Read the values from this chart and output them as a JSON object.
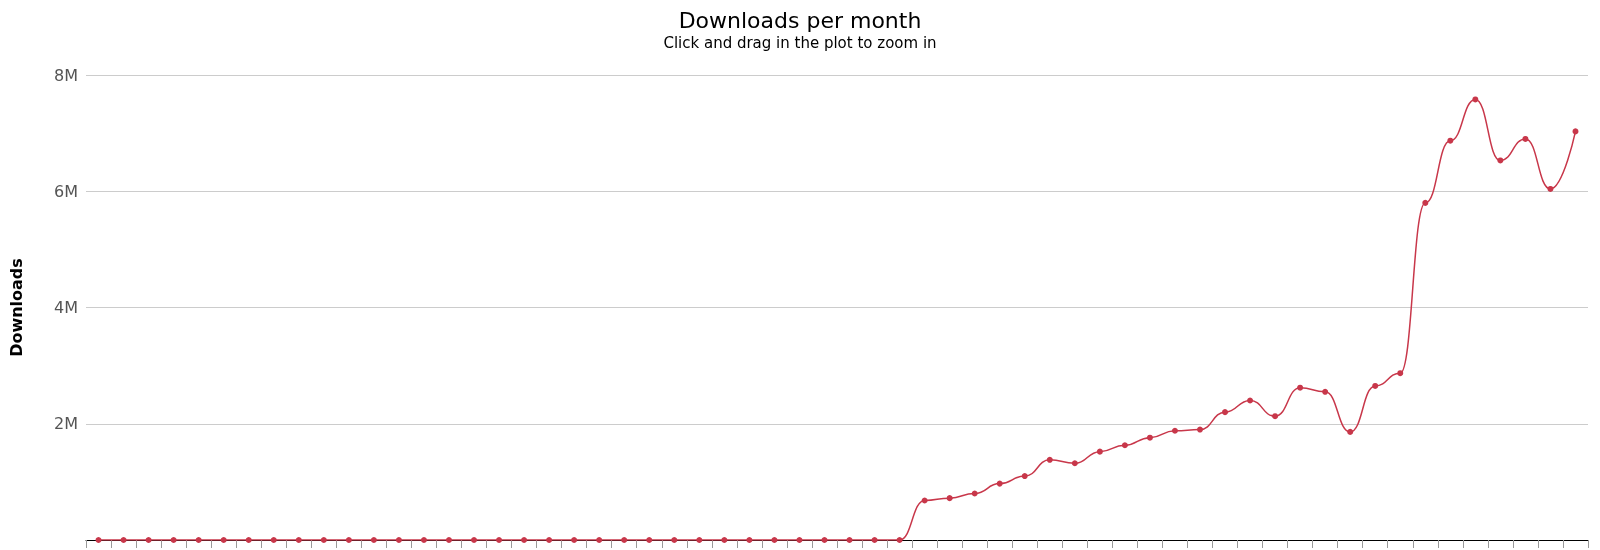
{
  "chart_data": {
    "type": "line",
    "title": "Downloads per month",
    "subtitle": "Click and drag in the plot to zoom in",
    "ylabel": "Downloads",
    "categories": [
      null,
      null,
      null,
      null,
      null,
      null,
      null,
      null,
      null,
      null,
      null,
      null,
      null,
      null,
      null,
      null,
      null,
      null,
      null,
      null,
      null,
      null,
      null,
      null,
      null,
      null,
      null,
      null,
      null,
      null,
      null,
      null,
      null,
      null,
      null,
      null,
      null,
      null,
      null,
      null,
      null,
      null,
      null,
      null,
      null,
      null,
      null,
      null,
      null,
      null,
      null,
      null,
      null,
      null,
      null,
      null,
      null,
      null,
      null,
      null
    ],
    "series": [
      {
        "color": "#c8374a",
        "values": [
          0,
          0,
          0,
          0,
          0,
          0,
          0,
          0,
          0,
          0,
          0,
          0,
          0,
          0,
          0,
          0,
          0,
          0,
          0,
          0,
          0,
          0,
          0,
          0,
          0,
          0,
          0,
          0,
          0,
          0,
          0,
          0,
          0,
          680000,
          720000,
          800000,
          970000,
          1100000,
          1380000,
          1320000,
          1520000,
          1630000,
          1760000,
          1880000,
          1900000,
          2200000,
          2400000,
          2130000,
          2620000,
          2550000,
          1860000,
          2650000,
          2870000,
          5800000,
          6870000,
          7580000,
          6530000,
          6900000,
          6040000,
          7030000
        ]
      }
    ],
    "ylim": [
      0,
      8000000
    ],
    "yticks": [
      {
        "value": 0,
        "label": null
      },
      {
        "value": 2000000,
        "label": "2M"
      },
      {
        "value": 4000000,
        "label": "4M"
      },
      {
        "value": 6000000,
        "label": "6M"
      },
      {
        "value": 8000000,
        "label": "8M"
      }
    ],
    "grid": "y",
    "tick_labels": "y",
    "marker": "circle",
    "line_style": "solid"
  }
}
